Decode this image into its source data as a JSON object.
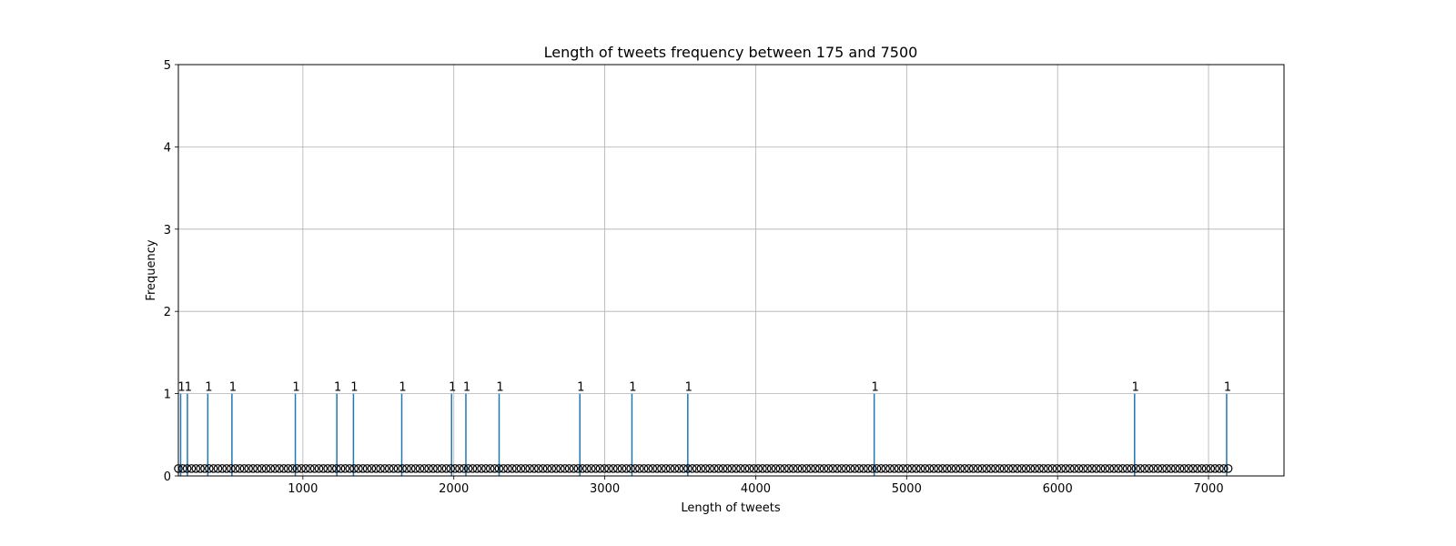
{
  "chart_data": {
    "type": "bar",
    "title": "Length of tweets frequency between 175 and 7500",
    "xlabel": "Length of tweets",
    "ylabel": "Frequency",
    "xlim": [
      175,
      7500
    ],
    "ylim": [
      0,
      5
    ],
    "xticks": [
      1000,
      2000,
      3000,
      4000,
      5000,
      6000,
      7000
    ],
    "yticks": [
      0,
      1,
      2,
      3,
      4,
      5
    ],
    "grid": true,
    "bar_color": "#1f77b4",
    "marker_color": "#000000",
    "marker_y": 0.09,
    "marker_x_range": [
      175,
      7130
    ],
    "bar_labels_shown": true,
    "points": [
      {
        "x": 190,
        "y": 1
      },
      {
        "x": 235,
        "y": 1
      },
      {
        "x": 370,
        "y": 1
      },
      {
        "x": 530,
        "y": 1
      },
      {
        "x": 950,
        "y": 1
      },
      {
        "x": 1225,
        "y": 1
      },
      {
        "x": 1335,
        "y": 1
      },
      {
        "x": 1655,
        "y": 1
      },
      {
        "x": 1985,
        "y": 1
      },
      {
        "x": 2080,
        "y": 1
      },
      {
        "x": 2300,
        "y": 1
      },
      {
        "x": 2835,
        "y": 1
      },
      {
        "x": 3180,
        "y": 1
      },
      {
        "x": 3550,
        "y": 1
      },
      {
        "x": 4785,
        "y": 1
      },
      {
        "x": 6510,
        "y": 1
      },
      {
        "x": 7120,
        "y": 1
      }
    ]
  }
}
